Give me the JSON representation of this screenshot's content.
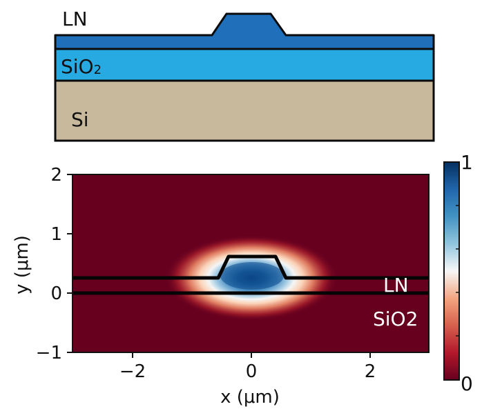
{
  "colors": {
    "ln_layer": "#1f6fba",
    "sio2_layer": "#27aae1",
    "si_layer": "#c8b99d",
    "field_background": "#67001f",
    "field_peak": "#0d4b8c",
    "outline": "#0b0b0b"
  },
  "cross_section": {
    "ln_label": "LN",
    "sio2_label_main": "SiO",
    "sio2_label_sub": "2",
    "si_label": "Si"
  },
  "mode_plot": {
    "xlabel": "x (μm)",
    "ylabel": "y (μm)",
    "x_ticks": [
      "−2",
      "0",
      "2"
    ],
    "y_ticks": [
      "2",
      "1",
      "0",
      "−1"
    ],
    "xlim": [
      -3,
      3
    ],
    "ylim": [
      -1,
      2
    ],
    "ln_label": "LN",
    "sio2_label": "SiO2",
    "colormap": "RdBu",
    "waveguide_outline_um": [
      [
        -3,
        0.25
      ],
      [
        -0.55,
        0.25
      ],
      [
        -0.4,
        0.6
      ],
      [
        0.4,
        0.6
      ],
      [
        0.55,
        0.25
      ],
      [
        3,
        0.25
      ]
    ],
    "substrate_interface_y_um": 0,
    "mode_center_um": [
      0,
      0.28
    ]
  },
  "colorbar": {
    "min_label": "0",
    "max_label": "1",
    "range": [
      0,
      1
    ]
  }
}
